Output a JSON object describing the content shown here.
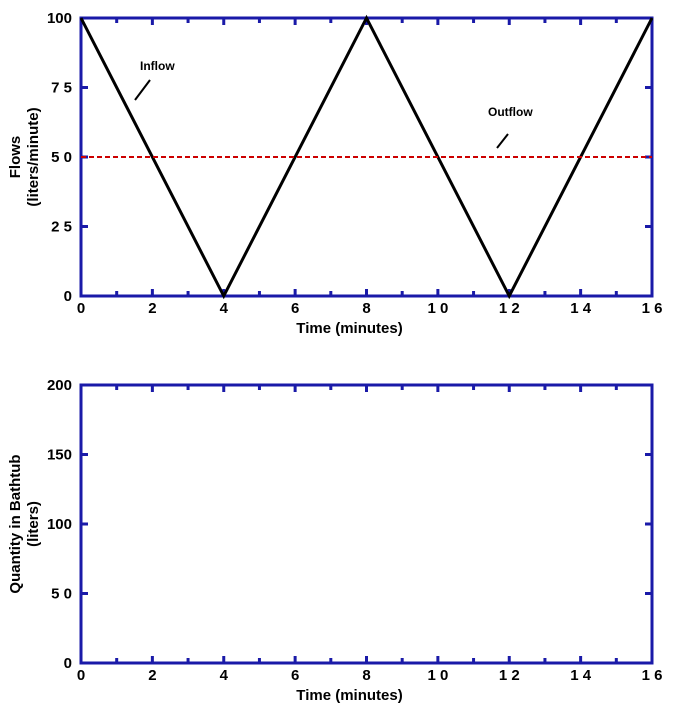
{
  "chart_data": [
    {
      "type": "line",
      "xlabel": "Time (minutes)",
      "ylabel": [
        "Flows",
        "(liters/minute)"
      ],
      "xlim": [
        0,
        16
      ],
      "ylim": [
        0,
        100
      ],
      "x_ticks": [
        "0",
        "2",
        "4",
        "6",
        "8",
        "1 0",
        "1 2",
        "1 4",
        "1 6"
      ],
      "y_ticks": [
        "0",
        "2 5",
        "5 0",
        "7 5",
        "100"
      ],
      "series": [
        {
          "name": "Inflow",
          "color": "#000000",
          "style": "solid",
          "x": [
            0,
            4,
            8,
            12,
            16
          ],
          "y": [
            100,
            0,
            100,
            0,
            100
          ]
        },
        {
          "name": "Outflow",
          "color": "#cc0000",
          "style": "dashed",
          "x": [
            0,
            16
          ],
          "y": [
            50,
            50
          ]
        }
      ],
      "annotations": [
        {
          "text": "Inflow",
          "target": "Inflow"
        },
        {
          "text": "Outflow",
          "target": "Outflow"
        }
      ]
    },
    {
      "type": "line",
      "xlabel": "Time (minutes)",
      "ylabel": [
        "Quantity in Bathtub",
        "(liters)"
      ],
      "xlim": [
        0,
        16
      ],
      "ylim": [
        0,
        200
      ],
      "x_ticks": [
        "0",
        "2",
        "4",
        "6",
        "8",
        "1 0",
        "1 2",
        "1 4",
        "1 6"
      ],
      "y_ticks": [
        "0",
        "5 0",
        "100",
        "150",
        "200"
      ],
      "series": []
    }
  ],
  "colors": {
    "frame": "#1a1aa8",
    "inflow": "#000000",
    "outflow": "#cc0000"
  }
}
